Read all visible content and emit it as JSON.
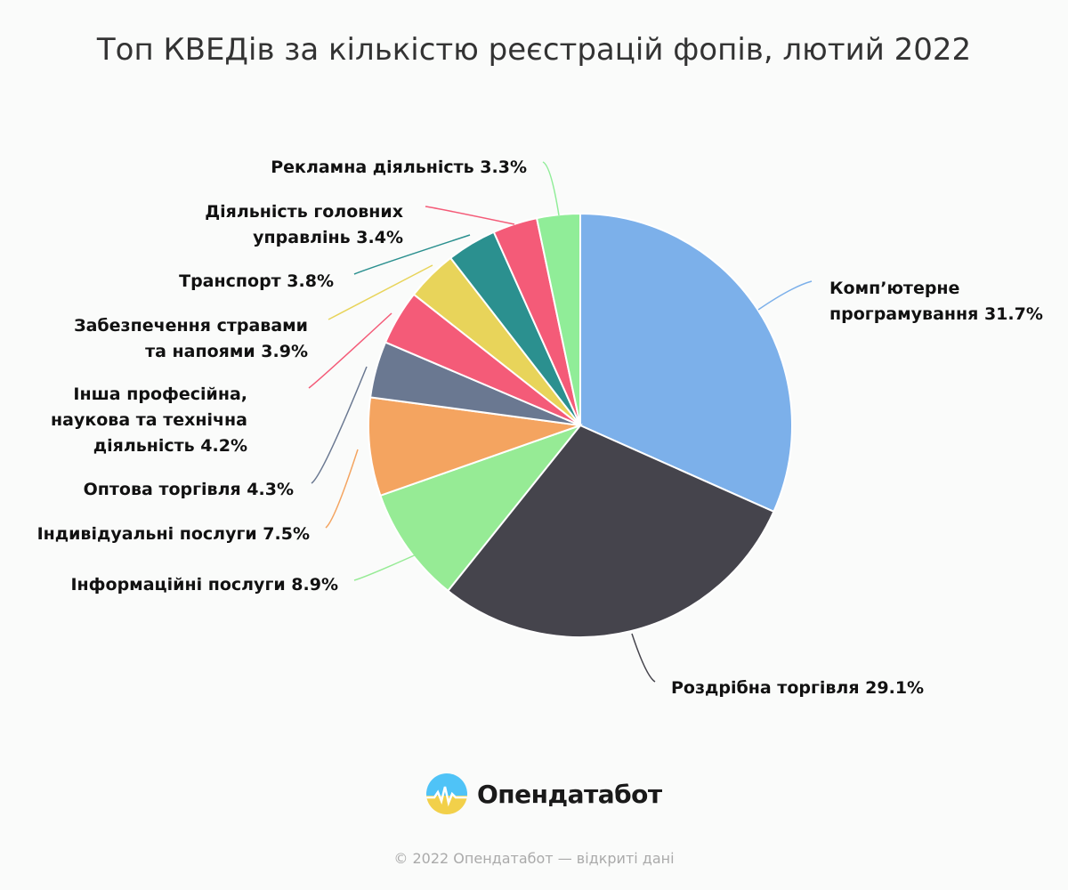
{
  "chart_data": {
    "type": "pie",
    "title": "Топ КВЕДів за кількістю реєстрацій фопів, лютий 2022",
    "slices": [
      {
        "label": [
          "Комп’ютерне",
          "програмування 31.7%"
        ],
        "value": 31.7,
        "color": "#7cb0ea"
      },
      {
        "label": [
          "Роздрібна торгівля 29.1%"
        ],
        "value": 29.1,
        "color": "#45444c"
      },
      {
        "label": [
          "Інформаційні послуги 8.9%"
        ],
        "value": 8.9,
        "color": "#96eb95"
      },
      {
        "label": [
          "Індивідуальні послуги 7.5%"
        ],
        "value": 7.5,
        "color": "#f4a460"
      },
      {
        "label": [
          "Оптова торгівля 4.3%"
        ],
        "value": 4.3,
        "color": "#6a7891"
      },
      {
        "label": [
          "Інша професійна,",
          "наукова та технічна",
          "діяльність 4.2%"
        ],
        "value": 4.2,
        "color": "#f45b78"
      },
      {
        "label": [
          "Забезпечення стравами",
          "та напоями 3.9%"
        ],
        "value": 3.9,
        "color": "#e8d45a"
      },
      {
        "label": [
          "Транспорт 3.8%"
        ],
        "value": 3.8,
        "color": "#2b908f"
      },
      {
        "label": [
          "Діяльність головних",
          "управлінь 3.4%"
        ],
        "value": 3.4,
        "color": "#f45b78"
      },
      {
        "label": [
          "Рекламна діяльність 3.3%"
        ],
        "value": 3.3,
        "color": "#90ed98"
      }
    ]
  },
  "brand": {
    "name": "Опендатабот",
    "logo_colors": [
      "#4fc3f7",
      "#f2d04a"
    ]
  },
  "footer": {
    "text": "© 2022 Опендатабот — відкриті дані"
  }
}
